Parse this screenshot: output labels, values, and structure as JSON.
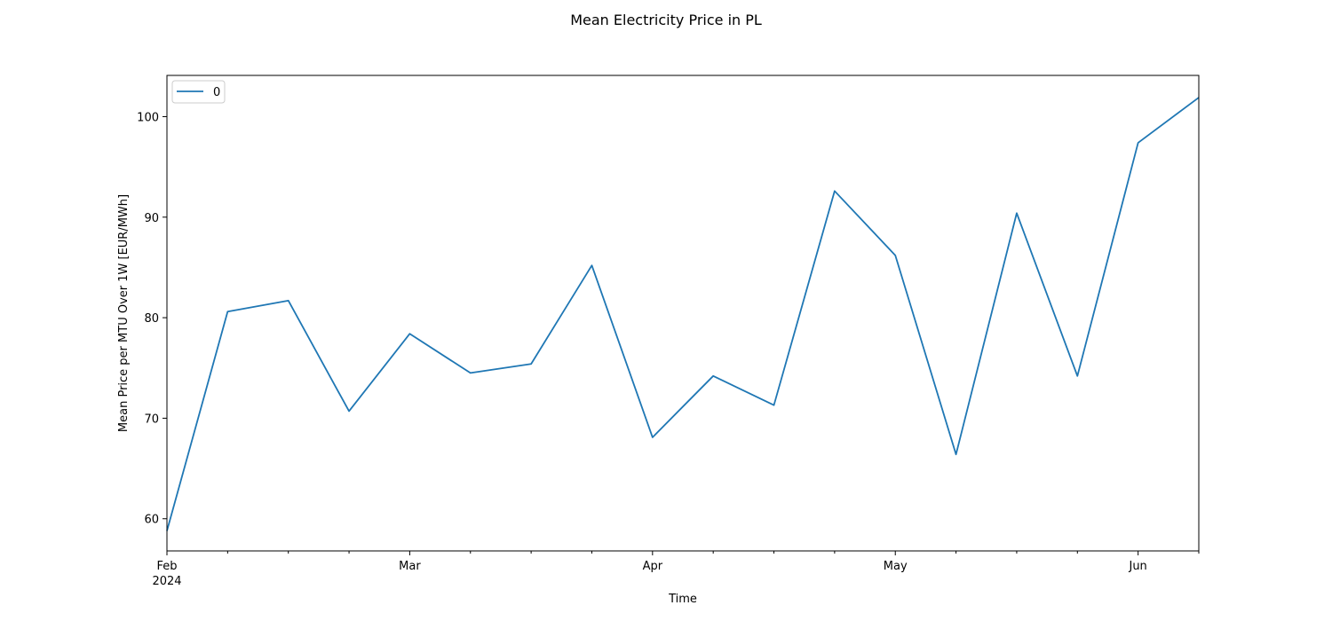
{
  "chart_data": {
    "type": "line",
    "title": "Mean Electricity Price in PL",
    "xlabel": "Time",
    "ylabel": "Mean Price per MTU Over 1W [EUR/MWh]",
    "x": [
      "2024-02-01",
      "2024-02-08",
      "2024-02-15",
      "2024-02-22",
      "2024-02-29",
      "2024-03-07",
      "2024-03-14",
      "2024-03-21",
      "2024-03-28",
      "2024-04-04",
      "2024-04-11",
      "2024-04-18",
      "2024-04-25",
      "2024-05-02",
      "2024-05-09",
      "2024-05-16",
      "2024-05-23",
      "2024-05-30"
    ],
    "series": [
      {
        "name": "0",
        "color": "#1f77b4",
        "values": [
          58.8,
          80.6,
          81.7,
          70.7,
          78.4,
          74.5,
          75.4,
          85.2,
          68.1,
          74.2,
          71.3,
          92.6,
          86.2,
          66.4,
          90.4,
          74.2,
          97.4,
          101.9
        ]
      }
    ],
    "xlim": [
      "2024-02-01",
      "2024-05-30"
    ],
    "ylim": [
      56.8,
      104.1
    ],
    "yticks": [
      60,
      70,
      80,
      90,
      100
    ],
    "xticks": [
      {
        "date": "2024-02-01",
        "label": "Feb",
        "sublabel": "2024"
      },
      {
        "date": "2024-02-29",
        "label": "Mar"
      },
      {
        "date": "2024-03-28",
        "label": "Apr"
      },
      {
        "date": "2024-04-25",
        "label": "May"
      },
      {
        "date": "2024-05-23",
        "label": "Jun"
      }
    ],
    "minor_xticks": [
      "2024-02-08",
      "2024-02-15",
      "2024-02-22",
      "2024-03-07",
      "2024-03-14",
      "2024-03-21",
      "2024-04-04",
      "2024-04-11",
      "2024-04-18",
      "2024-05-02",
      "2024-05-09",
      "2024-05-16",
      "2024-05-30"
    ],
    "legend": {
      "position": "top-left"
    },
    "grid": false
  }
}
